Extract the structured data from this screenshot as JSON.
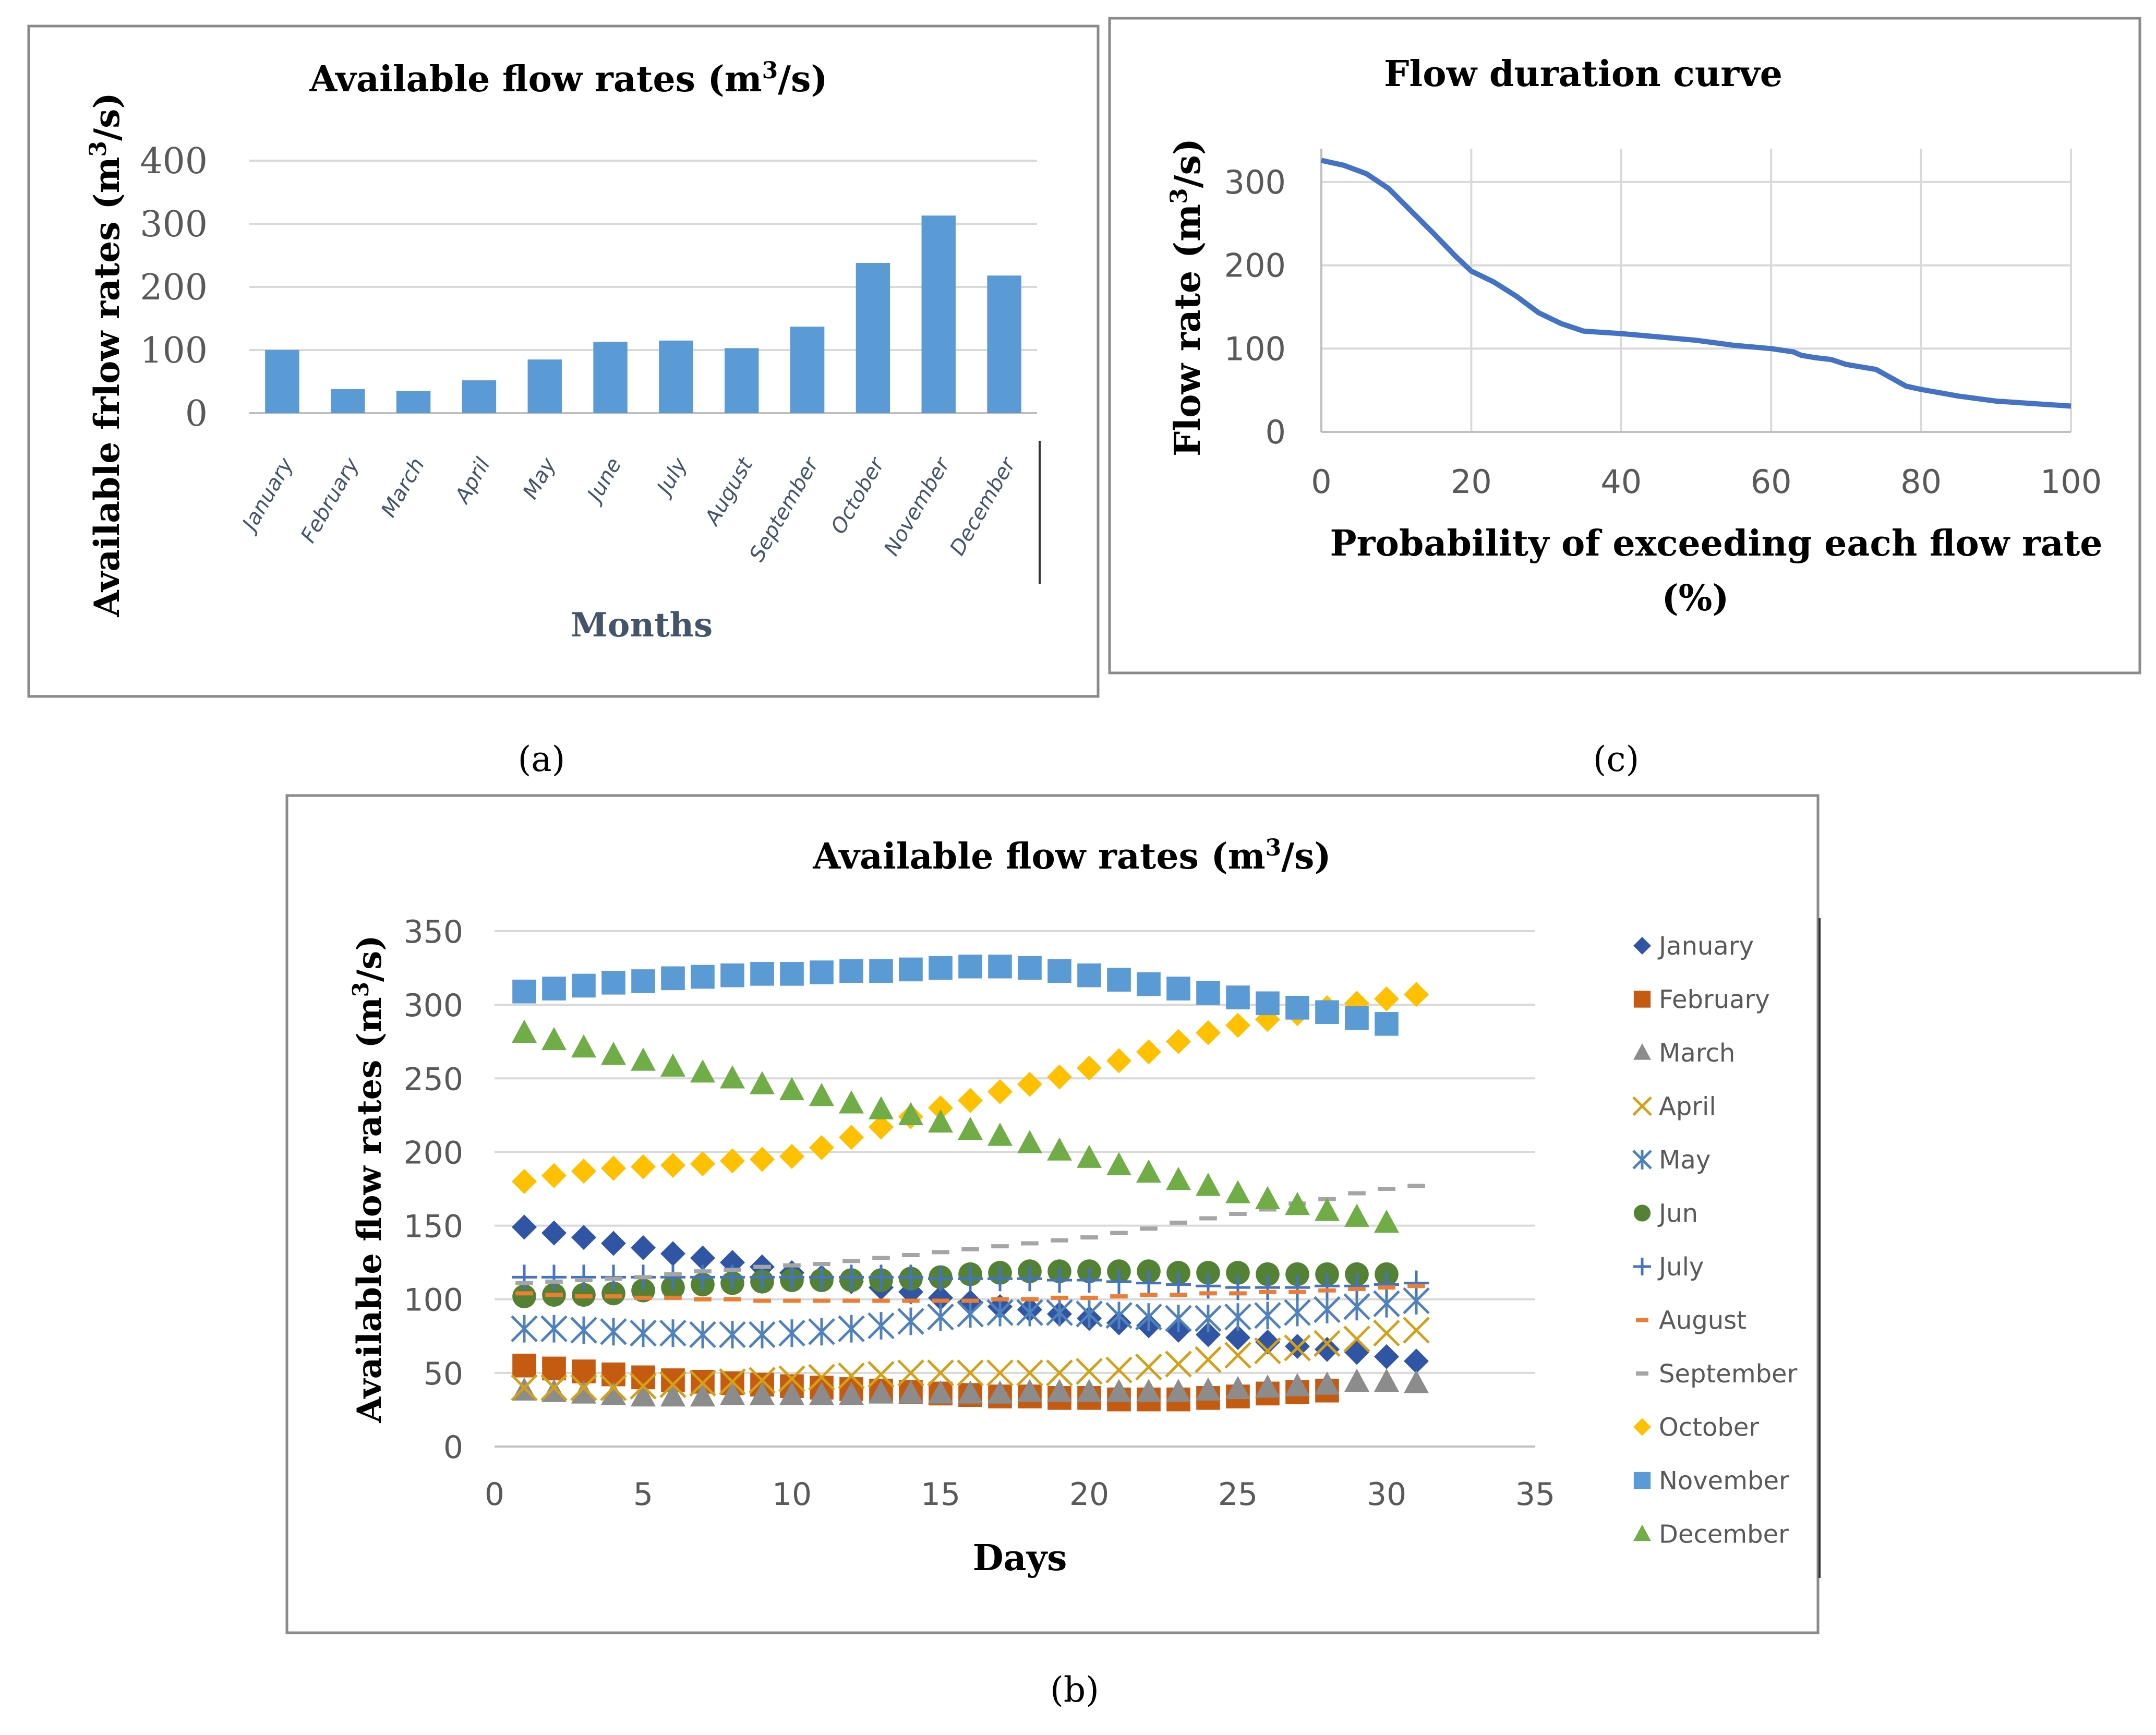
{
  "captions": {
    "a": "(a)",
    "b": "(b)",
    "c": "(c)"
  },
  "colors": {
    "bar": "#5b9bd5",
    "curve": "#4472c4",
    "January": "#2f55a4",
    "February": "#c55a11",
    "March": "#8c8c8c",
    "April": "#d4a017",
    "May": "#4f81bd",
    "Jun": "#548235",
    "July": "#4472c4",
    "August": "#ed7d31",
    "September": "#a5a5a5",
    "October": "#ffc000",
    "November": "#5b9bd5",
    "December": "#70ad47"
  },
  "chart_data": [
    {
      "id": "a",
      "type": "bar",
      "title_main": "Available flow rates (m",
      "title_sup": "3",
      "title_end": "/s)",
      "xlabel": "Months",
      "ylabel_main": "Available frlow rates (m",
      "ylabel_sup": "3",
      "ylabel_end": "/s)",
      "ylim": [
        0,
        400
      ],
      "yticks": [
        "0",
        "100",
        "200",
        "300",
        "400"
      ],
      "categories": [
        "January",
        "February",
        "March",
        "April",
        "May",
        "June",
        "July",
        "August",
        "September",
        "October",
        "November",
        "December"
      ],
      "values": [
        100,
        38,
        35,
        52,
        85,
        113,
        115,
        103,
        137,
        238,
        313,
        218
      ],
      "grid": true
    },
    {
      "id": "c",
      "type": "line",
      "title": "Flow duration curve",
      "xlabel_line1": "Probability of exceeding each flow rate",
      "xlabel_line2": "(%)",
      "ylabel_main": "Flow rate (m",
      "ylabel_sup": "3",
      "ylabel_end": "/s)",
      "xlim": [
        0,
        100
      ],
      "ylim": [
        0,
        340
      ],
      "xticks": [
        "0",
        "20",
        "40",
        "60",
        "80",
        "100"
      ],
      "yticks": [
        "0",
        "100",
        "200",
        "300"
      ],
      "x": [
        0,
        3,
        6,
        9,
        12,
        15,
        18,
        20,
        23,
        26,
        29,
        32,
        35,
        40,
        45,
        50,
        55,
        60,
        63,
        64,
        66,
        68,
        70,
        74,
        78,
        80,
        85,
        90,
        95,
        100
      ],
      "y": [
        326,
        320,
        310,
        292,
        265,
        238,
        210,
        193,
        180,
        163,
        143,
        130,
        121,
        118,
        114,
        110,
        104,
        100,
        96,
        92,
        89,
        87,
        81,
        75,
        55,
        51,
        43,
        37,
        34,
        31
      ],
      "grid": true
    },
    {
      "id": "b",
      "type": "scatter",
      "title_main": "Available flow rates (m",
      "title_sup": "3",
      "title_end": "/s)",
      "xlabel": "Days",
      "ylabel_main": "Available flow rates (m",
      "ylabel_sup": "3",
      "ylabel_end": "/s)",
      "xlim": [
        0,
        35
      ],
      "ylim": [
        0,
        350
      ],
      "xticks": [
        "0",
        "5",
        "10",
        "15",
        "20",
        "25",
        "30",
        "35"
      ],
      "yticks": [
        "0",
        "50",
        "100",
        "150",
        "200",
        "250",
        "300",
        "350"
      ],
      "grid": true,
      "legend_position": "right",
      "series": [
        {
          "name": "January",
          "marker": "diamond",
          "values": [
            149,
            145,
            142,
            138,
            135,
            131,
            128,
            125,
            122,
            118,
            115,
            112,
            108,
            105,
            101,
            98,
            95,
            93,
            90,
            87,
            84,
            82,
            79,
            76,
            74,
            71,
            68,
            66,
            64,
            61,
            58
          ]
        },
        {
          "name": "February",
          "marker": "square",
          "values": [
            55,
            53,
            51,
            49,
            47,
            45,
            44,
            43,
            42,
            41,
            40,
            39,
            38,
            37,
            36,
            35,
            34,
            34,
            33,
            33,
            32,
            32,
            32,
            33,
            34,
            36,
            37,
            38
          ]
        },
        {
          "name": "March",
          "marker": "triangle",
          "values": [
            38,
            37,
            36,
            35,
            34,
            34,
            34,
            35,
            35,
            35,
            35,
            35,
            36,
            36,
            36,
            36,
            36,
            37,
            37,
            37,
            37,
            37,
            37,
            38,
            39,
            40,
            41,
            42,
            44,
            44,
            43
          ]
        },
        {
          "name": "April",
          "marker": "x",
          "values": [
            40,
            40,
            40,
            40,
            41,
            42,
            43,
            44,
            45,
            46,
            47,
            48,
            49,
            50,
            50,
            50,
            50,
            50,
            50,
            51,
            52,
            54,
            56,
            59,
            62,
            65,
            67,
            70,
            73,
            77,
            79
          ]
        },
        {
          "name": "May",
          "marker": "asterisk",
          "values": [
            80,
            80,
            79,
            78,
            77,
            77,
            76,
            76,
            76,
            77,
            78,
            80,
            82,
            85,
            88,
            90,
            91,
            91,
            91,
            90,
            89,
            88,
            87,
            87,
            88,
            89,
            91,
            93,
            95,
            97,
            99
          ]
        },
        {
          "name": "Jun",
          "marker": "circle",
          "values": [
            102,
            103,
            103,
            104,
            106,
            108,
            110,
            111,
            112,
            113,
            113,
            113,
            113,
            114,
            115,
            117,
            118,
            119,
            119,
            119,
            119,
            119,
            118,
            118,
            118,
            117,
            117,
            117,
            117,
            117
          ]
        },
        {
          "name": "July",
          "marker": "plus",
          "values": [
            115,
            115,
            115,
            115,
            115,
            115,
            115,
            115,
            115,
            115,
            115,
            115,
            115,
            115,
            114,
            114,
            114,
            114,
            113,
            113,
            112,
            111,
            110,
            109,
            108,
            108,
            108,
            109,
            109,
            110,
            111
          ]
        },
        {
          "name": "August",
          "marker": "dash",
          "values": [
            104,
            103,
            102,
            102,
            101,
            101,
            100,
            100,
            99,
            99,
            99,
            99,
            99,
            99,
            99,
            99,
            100,
            100,
            101,
            101,
            102,
            103,
            103,
            104,
            104,
            105,
            105,
            106,
            107,
            108,
            109
          ]
        },
        {
          "name": "September",
          "marker": "dash",
          "values": [
            111,
            112,
            113,
            114,
            115,
            117,
            119,
            120,
            122,
            123,
            124,
            126,
            128,
            130,
            132,
            134,
            136,
            138,
            140,
            142,
            145,
            148,
            152,
            155,
            158,
            161,
            165,
            168,
            172,
            175,
            177
          ]
        },
        {
          "name": "October",
          "marker": "diamond",
          "values": [
            180,
            184,
            187,
            189,
            190,
            191,
            192,
            194,
            195,
            197,
            203,
            210,
            217,
            224,
            230,
            235,
            241,
            246,
            251,
            257,
            262,
            268,
            275,
            281,
            286,
            290,
            294,
            298,
            301,
            304,
            307
          ]
        },
        {
          "name": "November",
          "marker": "square",
          "values": [
            309,
            311,
            313,
            315,
            316,
            318,
            319,
            320,
            321,
            321,
            322,
            323,
            323,
            324,
            325,
            326,
            326,
            325,
            323,
            320,
            317,
            314,
            311,
            308,
            305,
            301,
            298,
            295,
            291,
            287
          ]
        },
        {
          "name": "December",
          "marker": "triangle",
          "values": [
            281,
            276,
            271,
            266,
            262,
            258,
            254,
            250,
            246,
            242,
            238,
            233,
            229,
            225,
            220,
            215,
            211,
            206,
            201,
            196,
            191,
            186,
            181,
            177,
            172,
            168,
            164,
            160,
            156,
            152
          ]
        }
      ]
    }
  ]
}
